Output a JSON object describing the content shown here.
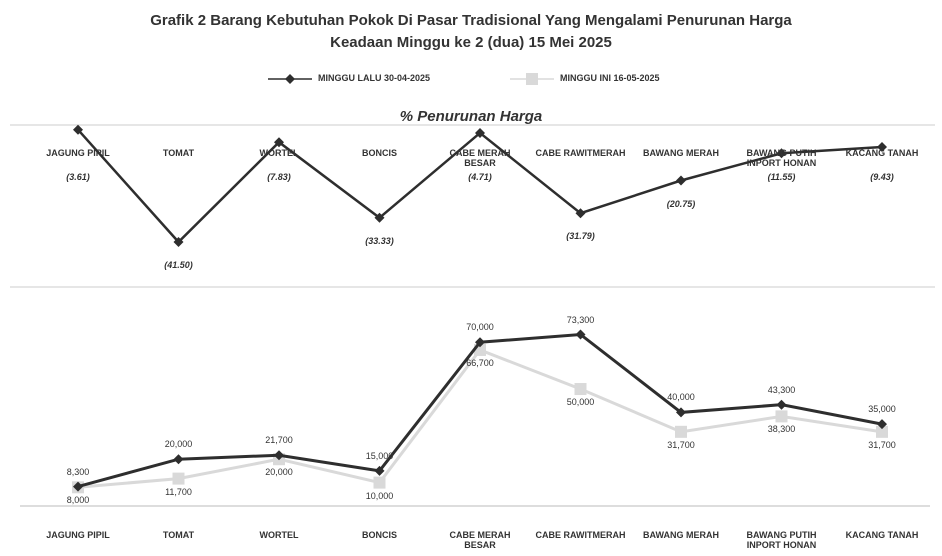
{
  "chart_data": [
    {
      "type": "line",
      "title": "Grafik 2 Barang Kebutuhan Pokok Di Pasar Tradisional Yang Mengalami Penurunan Harga Keadaan Minggu ke 2 (dua) 15 Mei 2025",
      "subtitle": "% Penurunan Harga",
      "categories": [
        "JAGUNG PIPIL",
        "TOMAT",
        "WORTEL",
        "BONCIS",
        "CABE MERAH BESAR",
        "CABE RAWITMERAH",
        "BAWANG MERAH",
        "BAWANG PUTIH INPORT HONAN",
        "KACANG TANAH"
      ],
      "values": [
        -3.61,
        -41.5,
        -7.83,
        -33.33,
        -4.71,
        -31.79,
        -20.75,
        -11.55,
        -9.43
      ],
      "value_labels": [
        "(3.61)",
        "(41.50)",
        "(7.83)",
        "(33.33)",
        "(4.71)",
        "(31.79)",
        "(20.75)",
        "(11.55)",
        "(9.43)"
      ],
      "color": "#2e2e2e"
    },
    {
      "type": "line",
      "categories": [
        "JAGUNG PIPIL",
        "TOMAT",
        "WORTEL",
        "BONCIS",
        "CABE MERAH BESAR",
        "CABE RAWITMERAH",
        "BAWANG MERAH",
        "BAWANG PUTIH INPORT HONAN",
        "KACANG TANAH"
      ],
      "series": [
        {
          "name": "MINGGU LALU 30-04-2025",
          "color": "#2e2e2e",
          "values": [
            8300,
            20000,
            21700,
            15000,
            70000,
            73300,
            40000,
            43300,
            35000
          ],
          "value_labels": [
            "8,300",
            "20,000",
            "21,700",
            "15,000",
            "70,000",
            "73,300",
            "40,000",
            "43,300",
            "35,000"
          ]
        },
        {
          "name": "MINGGU INI 16-05-2025",
          "color": "#d9d9d9",
          "values": [
            8000,
            11700,
            20000,
            10000,
            66700,
            50000,
            31700,
            38300,
            31700
          ],
          "value_labels": [
            "8,000",
            "11,700",
            "20,000",
            "10,000",
            "66,700",
            "50,000",
            "31,700",
            "38,300",
            "31,700"
          ]
        }
      ],
      "legend": "top"
    }
  ]
}
